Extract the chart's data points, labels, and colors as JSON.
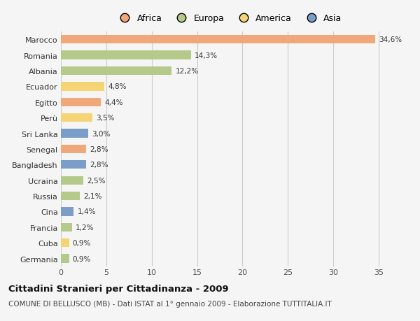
{
  "countries": [
    "Marocco",
    "Romania",
    "Albania",
    "Ecuador",
    "Egitto",
    "Perù",
    "Sri Lanka",
    "Senegal",
    "Bangladesh",
    "Ucraina",
    "Russia",
    "Cina",
    "Francia",
    "Cuba",
    "Germania"
  ],
  "values": [
    34.6,
    14.3,
    12.2,
    4.8,
    4.4,
    3.5,
    3.0,
    2.8,
    2.8,
    2.5,
    2.1,
    1.4,
    1.2,
    0.9,
    0.9
  ],
  "labels": [
    "34,6%",
    "14,3%",
    "12,2%",
    "4,8%",
    "4,4%",
    "3,5%",
    "3,0%",
    "2,8%",
    "2,8%",
    "2,5%",
    "2,1%",
    "1,4%",
    "1,2%",
    "0,9%",
    "0,9%"
  ],
  "continents": [
    "Africa",
    "Europa",
    "Europa",
    "America",
    "Africa",
    "America",
    "Asia",
    "Africa",
    "Asia",
    "Europa",
    "Europa",
    "Asia",
    "Europa",
    "America",
    "Europa"
  ],
  "continent_colors": {
    "Africa": "#F0A87A",
    "Europa": "#B5C98A",
    "America": "#F5D475",
    "Asia": "#7B9EC9"
  },
  "legend_order": [
    "Africa",
    "Europa",
    "America",
    "Asia"
  ],
  "xlim": [
    0,
    37
  ],
  "xticks": [
    0,
    5,
    10,
    15,
    20,
    25,
    30,
    35
  ],
  "title": "Cittadini Stranieri per Cittadinanza - 2009",
  "subtitle": "COMUNE DI BELLUSCO (MB) - Dati ISTAT al 1° gennaio 2009 - Elaborazione TUTTITALIA.IT",
  "background_color": "#F5F5F5",
  "bar_height": 0.55,
  "grid_color": "#CCCCCC"
}
